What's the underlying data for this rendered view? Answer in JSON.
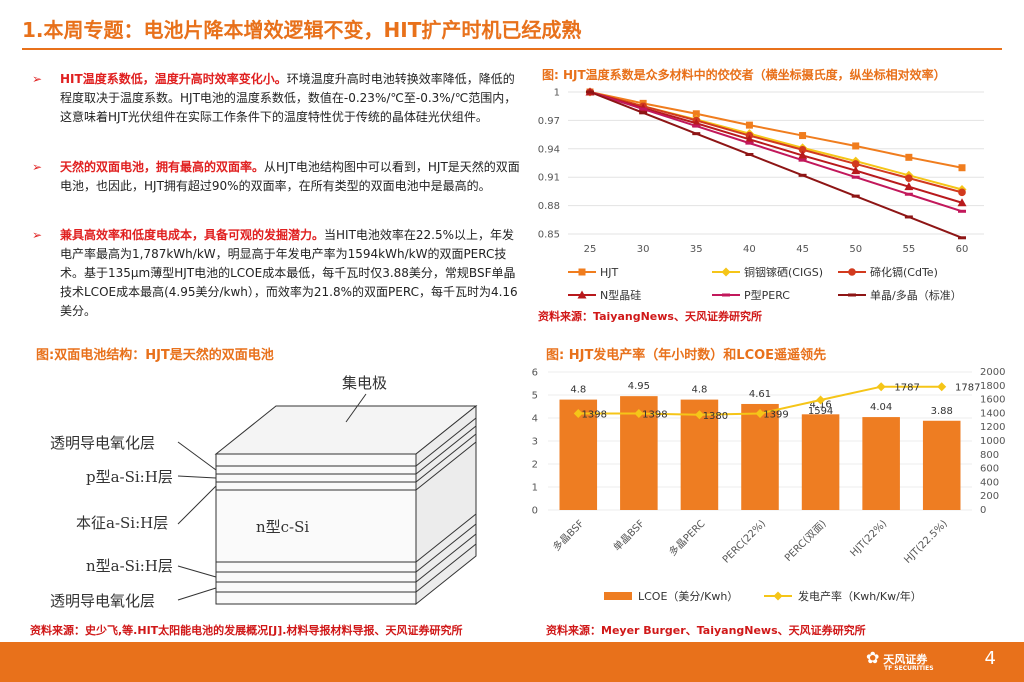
{
  "slide": {
    "title": "1.本周专题：电池片降本增效逻辑不变，HIT扩产时机已经成熟",
    "page_number": "4",
    "logo_text": "天风证券",
    "logo_subtext": "TF SECURITIES"
  },
  "bullets": [
    {
      "highlight": "HIT温度系数低，温度升高时效率变化小。",
      "text": "环境温度升高时电池转换效率降低，降低的程度取决于温度系数。HJT电池的温度系数低，数值在-0.23%/℃至-0.3%/℃范围内，这意味着HJT光伏组件在实际工作条件下的温度特性优于传统的晶体硅光伏组件。"
    },
    {
      "highlight": "天然的双面电池，拥有最高的双面率。",
      "text": "从HJT电池结构图中可以看到，HJT是天然的双面电池，也因此，HJT拥有超过90%的双面率，在所有类型的双面电池中是最高的。"
    },
    {
      "highlight": "兼具高效率和低度电成本，具备可观的发掘潜力。",
      "text": "当HIT电池效率在22.5%以上，年发电产率最高为1,787kWh/kW，明显高于年发电产率为1594kWh/kW的双面PERC技术。基于135μm薄型HJT电池的LCOE成本最低，每千瓦时仅3.88美分，常规BSF单晶技术LCOE成本最高(4.95美分/kwh），而效率为21.8%的双面PERC，每千瓦时为4.16美分。"
    }
  ],
  "fig1": {
    "title": "图: HJT温度系数是众多材料中的佼佼者（横坐标摄氏度，纵坐标相对效率）",
    "source": "资料来源：TaiyangNews、天风证券研究所"
  },
  "fig2": {
    "title": "图:双面电池结构：HJT是天然的双面电池",
    "source": "资料来源：史少飞,等.HIT太阳能电池的发展概况[J].材料导报材料导报、天风证券研究所",
    "labels": {
      "top": "集电极",
      "layer1": "透明导电氧化层",
      "layer2": "p型a-Si:H层",
      "layer3": "本征a-Si:H层",
      "center": "n型c-Si",
      "layer4": "n型a-Si:H层",
      "layer5": "透明导电氧化层"
    }
  },
  "fig3": {
    "title": "图: HJT发电产率（年小时数）和LCOE遥遥领先",
    "source": "资料来源：Meyer Burger、TaiyangNews、天风证券研究所"
  },
  "colors": {
    "accent": "#e8711b",
    "highlight": "#e02020"
  },
  "chart_data": [
    {
      "type": "line",
      "x": [
        25,
        30,
        35,
        40,
        45,
        50,
        55,
        60
      ],
      "ylim": [
        0.85,
        1
      ],
      "yticks": [
        "0.85",
        "0.88",
        "0.91",
        "0.94",
        "0.97",
        "1"
      ],
      "series": [
        {
          "name": "HJT",
          "color": "#f07d1e",
          "marker": "square",
          "values": [
            1,
            0.988,
            0.977,
            0.965,
            0.954,
            0.943,
            0.931,
            0.92
          ]
        },
        {
          "name": "铜铟镓硒(CIGS)",
          "color": "#f5c518",
          "marker": "diamond",
          "values": [
            1,
            0.985,
            0.971,
            0.956,
            0.941,
            0.927,
            0.912,
            0.897
          ]
        },
        {
          "name": "碲化镉(CdTe)",
          "color": "#d23a1e",
          "marker": "circle",
          "values": [
            1,
            0.985,
            0.97,
            0.954,
            0.939,
            0.924,
            0.909,
            0.894
          ]
        },
        {
          "name": "N型晶硅",
          "color": "#b8191c",
          "marker": "triangle",
          "values": [
            1,
            0.983,
            0.967,
            0.95,
            0.933,
            0.917,
            0.9,
            0.883
          ]
        },
        {
          "name": "P型PERC",
          "color": "#c2185b",
          "marker": "dash",
          "values": [
            1,
            0.982,
            0.964,
            0.946,
            0.928,
            0.91,
            0.892,
            0.874
          ]
        },
        {
          "name": "单晶/多晶（标准）",
          "color": "#8e1515",
          "marker": "dash",
          "values": [
            1,
            0.978,
            0.956,
            0.934,
            0.912,
            0.89,
            0.868,
            0.846
          ]
        }
      ]
    },
    {
      "type": "bar",
      "categories": [
        "多晶BSF",
        "单晶BSF",
        "多晶PERC",
        "PERC(22%)",
        "PERC(双面)",
        "HJT(22%)",
        "HJT(22.5%)"
      ],
      "series": [
        {
          "name": "LCOE（美分/Kwh）",
          "type": "bar",
          "axis": "left",
          "color": "#ee7d22",
          "values": [
            4.8,
            4.95,
            4.8,
            4.61,
            4.16,
            4.04,
            3.88
          ]
        },
        {
          "name": "发电产率（Kwh/Kw/年）",
          "type": "line",
          "axis": "right",
          "color": "#f5c518",
          "values": [
            1398,
            1398,
            1380,
            1399,
            1594,
            1787,
            1787
          ]
        }
      ],
      "ylim": [
        0,
        6
      ],
      "yticks": [
        "0",
        "1",
        "2",
        "3",
        "4",
        "5",
        "6"
      ],
      "y2lim": [
        0,
        2000
      ],
      "y2ticks": [
        "0",
        "200",
        "400",
        "600",
        "800",
        "1000",
        "1200",
        "1400",
        "1600",
        "1800",
        "2000"
      ]
    }
  ]
}
